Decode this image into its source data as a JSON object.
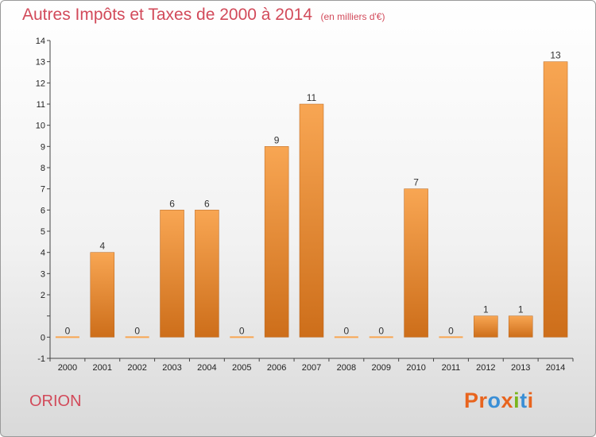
{
  "title": "Autres Impôts et Taxes de 2000 à 2014",
  "subtitle": "(en milliers d'€)",
  "location": "ORION",
  "brand": {
    "text": "Proxiti",
    "letter_colors": [
      "#e8641e",
      "#e8641e",
      "#3a8fd6",
      "#e8641e",
      "#7ab51d",
      "#3a8fd6",
      "#e8641e"
    ]
  },
  "colors": {
    "bar_light": "#f8a653",
    "bar_dark": "#cd6e1a",
    "axis": "#444444",
    "title": "#d24a5a"
  },
  "chart_data": {
    "type": "bar",
    "title": "Autres Impôts et Taxes de 2000 à 2014",
    "subtitle": "(en milliers d'€)",
    "categories": [
      "2000",
      "2001",
      "2002",
      "2003",
      "2004",
      "2005",
      "2006",
      "2007",
      "2008",
      "2009",
      "2010",
      "2011",
      "2012",
      "2013",
      "2014"
    ],
    "values": [
      0,
      4,
      0,
      6,
      6,
      0,
      9,
      11,
      0,
      0,
      7,
      0,
      1,
      1,
      13
    ],
    "ylim": [
      -1,
      14
    ],
    "yticks": [
      -1,
      0,
      1,
      2,
      3,
      4,
      5,
      6,
      7,
      8,
      9,
      10,
      11,
      12,
      13,
      14
    ],
    "ytick_labels": [
      "-1",
      "0",
      "",
      "2",
      "3",
      "4",
      "5",
      "6",
      "7",
      "8",
      "9",
      "10",
      "11",
      "12",
      "13",
      "14"
    ],
    "xlabel": "",
    "ylabel": "",
    "grid": false,
    "legend": false
  }
}
